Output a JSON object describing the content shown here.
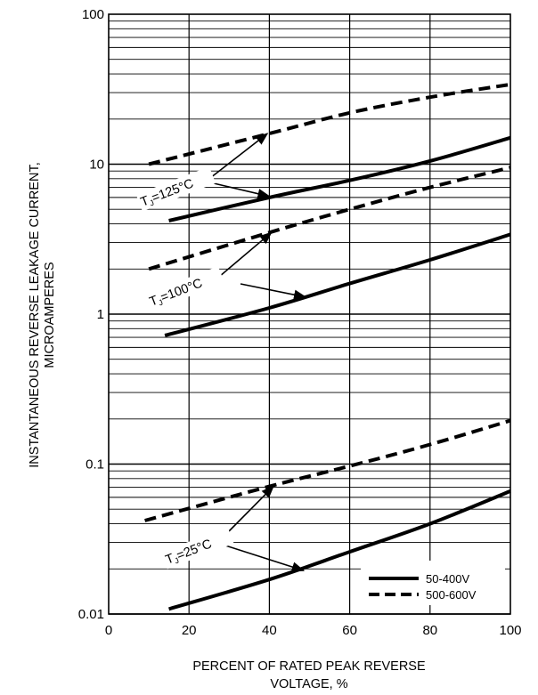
{
  "chart_data": {
    "type": "line",
    "ylabel_lines": [
      "INSTANTANEOUS REVERSE LEAKAGE CURRENT,",
      "MICROAMPERES"
    ],
    "xlabel_lines": [
      "PERCENT OF RATED PEAK REVERSE",
      "VOLTAGE, %"
    ],
    "xlim": [
      0,
      100
    ],
    "ylim": [
      0.01,
      100
    ],
    "y_scale": "log",
    "grid": true,
    "x_ticks": [
      "0",
      "20",
      "40",
      "60",
      "80",
      "100"
    ],
    "y_ticks": [
      "0.01",
      "0.1",
      "1",
      "10",
      "100"
    ],
    "legend_position": "bottom-right",
    "series": [
      {
        "name": "50-400V",
        "style": "solid",
        "group": "125",
        "x": [
          15,
          40,
          60,
          80,
          100
        ],
        "y": [
          4.2,
          6.0,
          7.8,
          10.5,
          15
        ]
      },
      {
        "name": "500-600V",
        "style": "dashed",
        "group": "125",
        "x": [
          10,
          40,
          60,
          80,
          100
        ],
        "y": [
          10,
          16,
          22,
          28,
          34
        ]
      },
      {
        "name": "50-400V",
        "style": "solid",
        "group": "100",
        "x": [
          14,
          40,
          60,
          80,
          100
        ],
        "y": [
          0.72,
          1.1,
          1.6,
          2.3,
          3.4
        ]
      },
      {
        "name": "500-600V",
        "style": "dashed",
        "group": "100",
        "x": [
          10,
          40,
          60,
          80,
          100
        ],
        "y": [
          2.0,
          3.5,
          5.0,
          7.0,
          9.5
        ]
      },
      {
        "name": "50-400V",
        "style": "solid",
        "group": "25",
        "x": [
          15,
          40,
          60,
          80,
          100
        ],
        "y": [
          0.0108,
          0.017,
          0.026,
          0.04,
          0.066
        ]
      },
      {
        "name": "500-600V",
        "style": "dashed",
        "group": "25",
        "x": [
          9,
          40,
          60,
          80,
          100
        ],
        "y": [
          0.042,
          0.071,
          0.097,
          0.135,
          0.195
        ]
      }
    ],
    "annotations": [
      {
        "id": "ann125",
        "main": "T",
        "sub": "J",
        "rest": "=125°C"
      },
      {
        "id": "ann100",
        "main": "T",
        "sub": "J",
        "rest": "=100°C"
      },
      {
        "id": "ann25",
        "main": "T",
        "sub": "J",
        "rest": "=25°C"
      }
    ],
    "legend": [
      {
        "label": "50-400V",
        "style": "solid"
      },
      {
        "label": "500-600V",
        "style": "dashed"
      }
    ]
  }
}
